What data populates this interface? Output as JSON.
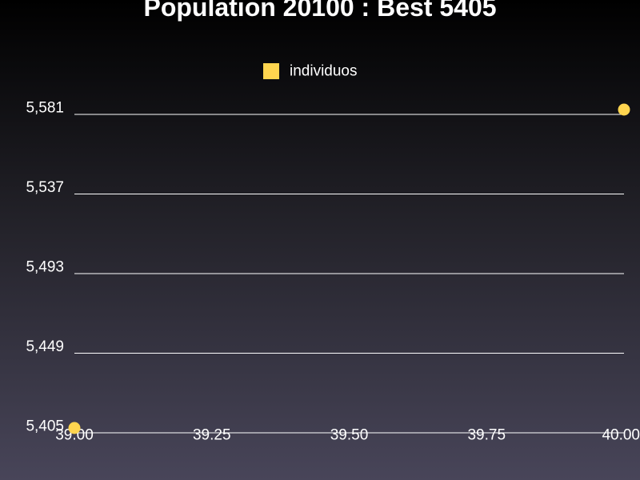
{
  "chart_data": {
    "type": "scatter",
    "title": "Population 20100 : Best 5405",
    "xlabel": "",
    "ylabel": "",
    "xlim": [
      39.0,
      40.0
    ],
    "ylim": [
      5405,
      5581
    ],
    "x_ticks": [
      "39.00",
      "39.25",
      "39.50",
      "39.75",
      "40.00"
    ],
    "y_ticks": [
      "5,405",
      "5,449",
      "5,493",
      "5,537",
      "5,581"
    ],
    "grid": "horizontal",
    "legend_position": "top-center",
    "series": [
      {
        "name": "individuos",
        "color": "#ffd54f",
        "points": [
          {
            "x": 39.0,
            "y": 5405
          },
          {
            "x": 40.0,
            "y": 5581
          }
        ]
      }
    ]
  }
}
